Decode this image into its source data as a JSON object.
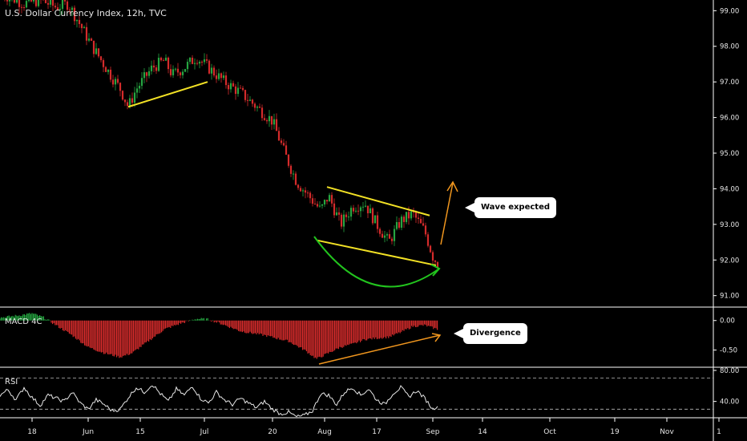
{
  "chart_data": {
    "type": "candlestick",
    "title": "U.S. Dollar Currency Index, 12h, TVC",
    "price_axis": {
      "ylim": [
        90.7,
        99.3
      ],
      "ticks": [
        "99.00",
        "98.00",
        "97.00",
        "96.00",
        "95.00",
        "94.00",
        "93.00",
        "92.00",
        "91.00"
      ]
    },
    "time_axis": {
      "ticks": [
        "18",
        "Jun",
        "15",
        "Jul",
        "20",
        "Aug",
        "17",
        "Sep",
        "14",
        "Oct",
        "19",
        "Nov",
        "1"
      ]
    },
    "price_path": [
      {
        "x": 0,
        "y": 99.5
      },
      {
        "x": 10,
        "y": 99.4
      },
      {
        "x": 30,
        "y": 99.2
      },
      {
        "x": 50,
        "y": 99.3
      },
      {
        "x": 70,
        "y": 99.1
      },
      {
        "x": 85,
        "y": 99.2
      },
      {
        "x": 100,
        "y": 98.6
      },
      {
        "x": 115,
        "y": 98.0
      },
      {
        "x": 135,
        "y": 97.3
      },
      {
        "x": 150,
        "y": 96.8
      },
      {
        "x": 160,
        "y": 96.3
      },
      {
        "x": 170,
        "y": 96.8
      },
      {
        "x": 190,
        "y": 97.4
      },
      {
        "x": 205,
        "y": 97.6
      },
      {
        "x": 215,
        "y": 97.2
      },
      {
        "x": 230,
        "y": 97.4
      },
      {
        "x": 245,
        "y": 97.7
      },
      {
        "x": 260,
        "y": 97.4
      },
      {
        "x": 280,
        "y": 97.0
      },
      {
        "x": 300,
        "y": 96.7
      },
      {
        "x": 320,
        "y": 96.3
      },
      {
        "x": 340,
        "y": 95.9
      },
      {
        "x": 355,
        "y": 95.0
      },
      {
        "x": 370,
        "y": 94.2
      },
      {
        "x": 385,
        "y": 93.8
      },
      {
        "x": 400,
        "y": 93.4
      },
      {
        "x": 410,
        "y": 93.8
      },
      {
        "x": 425,
        "y": 93.0
      },
      {
        "x": 440,
        "y": 93.5
      },
      {
        "x": 455,
        "y": 93.6
      },
      {
        "x": 470,
        "y": 93.0
      },
      {
        "x": 485,
        "y": 92.5
      },
      {
        "x": 500,
        "y": 93.1
      },
      {
        "x": 515,
        "y": 93.3
      },
      {
        "x": 530,
        "y": 92.8
      },
      {
        "x": 540,
        "y": 92.1
      },
      {
        "x": 546,
        "y": 91.9
      }
    ],
    "drawings": {
      "wave_callout": "Wave expected",
      "divergence_callout": "Divergence"
    },
    "macd": {
      "name": "MACD 4C",
      "ylim": [
        -0.75,
        0.2
      ],
      "ticks": [
        "0.00",
        "-0.50"
      ],
      "path": [
        {
          "x": 0,
          "y": 0.05
        },
        {
          "x": 20,
          "y": 0.08
        },
        {
          "x": 40,
          "y": 0.12
        },
        {
          "x": 55,
          "y": 0.05
        },
        {
          "x": 70,
          "y": -0.08
        },
        {
          "x": 90,
          "y": -0.25
        },
        {
          "x": 110,
          "y": -0.45
        },
        {
          "x": 130,
          "y": -0.55
        },
        {
          "x": 150,
          "y": -0.62
        },
        {
          "x": 165,
          "y": -0.55
        },
        {
          "x": 185,
          "y": -0.35
        },
        {
          "x": 205,
          "y": -0.15
        },
        {
          "x": 225,
          "y": -0.05
        },
        {
          "x": 245,
          "y": 0.03
        },
        {
          "x": 260,
          "y": 0.02
        },
        {
          "x": 275,
          "y": -0.05
        },
        {
          "x": 300,
          "y": -0.18
        },
        {
          "x": 330,
          "y": -0.25
        },
        {
          "x": 360,
          "y": -0.35
        },
        {
          "x": 380,
          "y": -0.5
        },
        {
          "x": 395,
          "y": -0.65
        },
        {
          "x": 410,
          "y": -0.55
        },
        {
          "x": 425,
          "y": -0.45
        },
        {
          "x": 440,
          "y": -0.4
        },
        {
          "x": 455,
          "y": -0.32
        },
        {
          "x": 470,
          "y": -0.3
        },
        {
          "x": 485,
          "y": -0.28
        },
        {
          "x": 500,
          "y": -0.2
        },
        {
          "x": 515,
          "y": -0.1
        },
        {
          "x": 530,
          "y": -0.08
        },
        {
          "x": 546,
          "y": -0.15
        }
      ]
    },
    "rsi": {
      "name": "RSI",
      "ylim": [
        20,
        82
      ],
      "ticks": [
        "80.00",
        "40.00"
      ],
      "levels": [
        70,
        30
      ],
      "path": [
        {
          "x": 0,
          "y": 48
        },
        {
          "x": 10,
          "y": 55
        },
        {
          "x": 20,
          "y": 42
        },
        {
          "x": 30,
          "y": 58
        },
        {
          "x": 40,
          "y": 45
        },
        {
          "x": 50,
          "y": 35
        },
        {
          "x": 60,
          "y": 48
        },
        {
          "x": 70,
          "y": 44
        },
        {
          "x": 80,
          "y": 40
        },
        {
          "x": 90,
          "y": 52
        },
        {
          "x": 100,
          "y": 38
        },
        {
          "x": 110,
          "y": 30
        },
        {
          "x": 120,
          "y": 42
        },
        {
          "x": 130,
          "y": 36
        },
        {
          "x": 140,
          "y": 28
        },
        {
          "x": 150,
          "y": 30
        },
        {
          "x": 160,
          "y": 45
        },
        {
          "x": 170,
          "y": 58
        },
        {
          "x": 180,
          "y": 52
        },
        {
          "x": 190,
          "y": 62
        },
        {
          "x": 200,
          "y": 50
        },
        {
          "x": 210,
          "y": 40
        },
        {
          "x": 220,
          "y": 56
        },
        {
          "x": 230,
          "y": 48
        },
        {
          "x": 240,
          "y": 60
        },
        {
          "x": 250,
          "y": 44
        },
        {
          "x": 260,
          "y": 38
        },
        {
          "x": 270,
          "y": 52
        },
        {
          "x": 280,
          "y": 42
        },
        {
          "x": 290,
          "y": 36
        },
        {
          "x": 300,
          "y": 44
        },
        {
          "x": 310,
          "y": 38
        },
        {
          "x": 320,
          "y": 32
        },
        {
          "x": 330,
          "y": 40
        },
        {
          "x": 340,
          "y": 30
        },
        {
          "x": 350,
          "y": 24
        },
        {
          "x": 360,
          "y": 26
        },
        {
          "x": 370,
          "y": 20
        },
        {
          "x": 380,
          "y": 22
        },
        {
          "x": 390,
          "y": 28
        },
        {
          "x": 400,
          "y": 50
        },
        {
          "x": 410,
          "y": 48
        },
        {
          "x": 420,
          "y": 36
        },
        {
          "x": 430,
          "y": 52
        },
        {
          "x": 440,
          "y": 58
        },
        {
          "x": 450,
          "y": 48
        },
        {
          "x": 460,
          "y": 56
        },
        {
          "x": 470,
          "y": 42
        },
        {
          "x": 480,
          "y": 36
        },
        {
          "x": 490,
          "y": 50
        },
        {
          "x": 500,
          "y": 58
        },
        {
          "x": 510,
          "y": 46
        },
        {
          "x": 520,
          "y": 54
        },
        {
          "x": 530,
          "y": 44
        },
        {
          "x": 540,
          "y": 30
        },
        {
          "x": 546,
          "y": 35
        }
      ]
    }
  },
  "colors": {
    "bull": "#26a641",
    "bear": "#d42b2b",
    "trendline": "#f2e125",
    "curve": "#22c41e",
    "arrow": "#f0961e",
    "grid": "#ffffff"
  }
}
